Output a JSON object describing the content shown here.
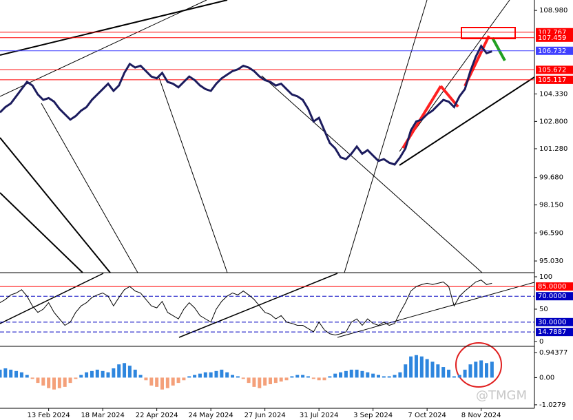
{
  "chart_data": [
    {
      "type": "line",
      "ylim": [
        94.38,
        109.56
      ],
      "yticks": [
        {
          "value": 108.98,
          "label": "108.980"
        },
        {
          "value": 104.33,
          "label": "104.330"
        },
        {
          "value": 102.8,
          "label": "102.800"
        },
        {
          "value": 101.28,
          "label": "101.280"
        },
        {
          "value": 99.68,
          "label": "99.680"
        },
        {
          "value": 98.15,
          "label": "98.150"
        },
        {
          "value": 96.59,
          "label": "96.590"
        },
        {
          "value": 95.03,
          "label": "95.030"
        }
      ],
      "levels": [
        {
          "value": 107.767,
          "color": "#ff0000"
        },
        {
          "value": 107.459,
          "color": "#ff0000"
        },
        {
          "value": 106.732,
          "color": "#4040ff"
        },
        {
          "value": 105.672,
          "color": "#ff0000"
        },
        {
          "value": 105.117,
          "color": "#ff0000"
        }
      ],
      "series": [
        {
          "color": "#1c1c5e",
          "values": [
            103.3,
            103.6,
            103.8,
            104.2,
            104.6,
            105.0,
            104.8,
            104.3,
            104.0,
            104.1,
            103.9,
            103.5,
            103.2,
            102.9,
            103.1,
            103.4,
            103.6,
            104.0,
            104.3,
            104.6,
            104.9,
            104.5,
            104.8,
            105.5,
            106.0,
            105.8,
            105.9,
            105.6,
            105.3,
            105.2,
            105.5,
            105.0,
            104.9,
            104.7,
            105.0,
            105.3,
            105.1,
            104.8,
            104.6,
            104.5,
            104.9,
            105.2,
            105.4,
            105.6,
            105.7,
            105.9,
            105.8,
            105.6,
            105.3,
            105.1,
            105.0,
            104.8,
            104.9,
            104.6,
            104.3,
            104.2,
            104.0,
            103.5,
            102.8,
            103.0,
            102.3,
            101.6,
            101.3,
            100.8,
            100.7,
            101.0,
            101.4,
            101.0,
            101.2,
            100.9,
            100.6,
            100.7,
            100.5,
            100.4,
            100.8,
            101.3,
            102.3,
            102.8,
            102.9,
            103.2,
            103.4,
            103.7,
            104.0,
            103.9,
            103.6,
            104.2,
            104.6,
            105.6,
            106.4,
            107.0,
            106.6,
            106.7
          ]
        }
      ]
    },
    {
      "type": "line",
      "ylim": [
        -7.4,
        105.3
      ],
      "yticks": [
        100,
        50,
        0
      ],
      "levels": [
        {
          "value": 85,
          "label": "85.0000",
          "color": "#ff0000"
        },
        {
          "value": 70,
          "label": "70.0000",
          "color": "#0000c0"
        },
        {
          "value": 30,
          "label": "30.0000",
          "color": "#0000c0"
        },
        {
          "value": 14.7887,
          "label": "14.7887",
          "color": "#0000c0"
        }
      ],
      "series": [
        {
          "color": "#000000",
          "values": [
            60,
            65,
            72,
            75,
            80,
            70,
            55,
            45,
            50,
            60,
            45,
            35,
            25,
            30,
            45,
            55,
            60,
            68,
            72,
            75,
            70,
            55,
            68,
            80,
            85,
            78,
            75,
            65,
            55,
            52,
            62,
            45,
            40,
            35,
            50,
            60,
            52,
            40,
            35,
            30,
            50,
            62,
            70,
            75,
            72,
            78,
            72,
            65,
            55,
            45,
            42,
            35,
            40,
            30,
            28,
            25,
            25,
            20,
            15,
            30,
            18,
            12,
            10,
            12,
            15,
            30,
            35,
            25,
            35,
            28,
            25,
            30,
            25,
            28,
            45,
            60,
            78,
            85,
            88,
            90,
            88,
            90,
            92,
            85,
            55,
            70,
            78,
            85,
            92,
            95,
            88,
            90
          ]
        }
      ]
    },
    {
      "type": "bar",
      "ylim": [
        -1.16,
        1.13
      ],
      "yticks": [
        {
          "value": 0.94377,
          "label": "0.94377"
        },
        {
          "value": 0,
          "label": "0.00"
        },
        {
          "value": -1.0279,
          "label": "-1.0279"
        }
      ],
      "positive_color": "#2e86de",
      "negative_color": "#f4a07a",
      "categories": [
        null,
        null,
        null,
        null,
        null,
        null,
        null,
        null,
        null,
        "13 Feb 2024",
        null,
        null,
        null,
        null,
        null,
        null,
        null,
        null,
        null,
        "18 Mar 2024",
        null,
        null,
        null,
        null,
        null,
        null,
        null,
        null,
        null,
        "22 Apr 2024",
        null,
        null,
        null,
        null,
        null,
        null,
        null,
        null,
        null,
        "24 May 2024",
        null,
        null,
        null,
        null,
        null,
        null,
        null,
        null,
        null,
        "27 Jun 2024",
        null,
        null,
        null,
        null,
        null,
        null,
        null,
        null,
        null,
        "31 Jul 2024",
        null,
        null,
        null,
        null,
        null,
        null,
        null,
        null,
        null,
        "3 Sep 2024",
        null,
        null,
        null,
        null,
        null,
        null,
        null,
        null,
        null,
        "7 Oct 2024",
        null,
        null,
        null,
        null,
        null,
        null,
        null,
        null,
        null,
        "8 Nov 2024",
        null,
        null
      ],
      "values": [
        0.3,
        0.35,
        0.3,
        0.25,
        0.2,
        0.1,
        -0.05,
        -0.2,
        -0.3,
        -0.4,
        -0.45,
        -0.4,
        -0.35,
        -0.2,
        -0.05,
        0.1,
        0.2,
        0.25,
        0.3,
        0.25,
        0.2,
        0.35,
        0.5,
        0.55,
        0.45,
        0.3,
        0.1,
        -0.1,
        -0.3,
        -0.35,
        -0.45,
        -0.4,
        -0.3,
        -0.2,
        -0.1,
        0.05,
        0.1,
        0.15,
        0.2,
        0.2,
        0.25,
        0.3,
        0.2,
        0.1,
        0.05,
        -0.05,
        -0.2,
        -0.35,
        -0.4,
        -0.3,
        -0.25,
        -0.2,
        -0.15,
        -0.1,
        0.05,
        0.1,
        0.1,
        0.05,
        -0.05,
        -0.1,
        -0.1,
        0.05,
        0.15,
        0.2,
        0.25,
        0.3,
        0.3,
        0.25,
        0.2,
        0.15,
        0.1,
        0.05,
        0.05,
        0.1,
        0.2,
        0.5,
        0.8,
        0.85,
        0.8,
        0.7,
        0.6,
        0.5,
        0.4,
        0.3,
        0.05,
        0.1,
        0.3,
        0.5,
        0.6,
        0.65,
        0.55,
        0.6
      ]
    }
  ],
  "watermark": "@TMGM"
}
